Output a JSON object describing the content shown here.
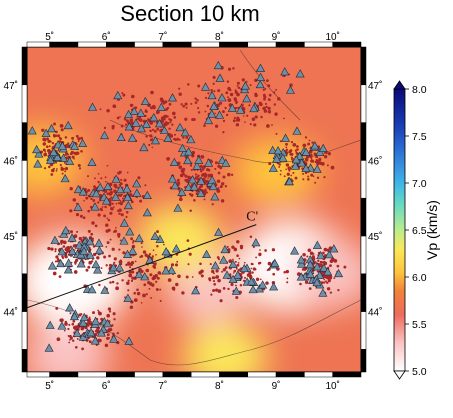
{
  "title": "Section 10 km",
  "map": {
    "lon_labels": [
      "5˚",
      "6˚",
      "7˚",
      "8˚",
      "9˚",
      "10˚"
    ],
    "lat_labels": [
      "47˚",
      "46˚",
      "45˚",
      "44˚"
    ],
    "lon_range": [
      4.6,
      10.5
    ],
    "lat_range": [
      43.2,
      47.5
    ],
    "profile_label": "C'",
    "profile_line": {
      "start": [
        4.6,
        44.05
      ],
      "end": [
        8.65,
        45.15
      ]
    },
    "seismicity_color": "#a8282a",
    "station_color": "#6f8fa8",
    "anomalies": [
      {
        "lon": 9.3,
        "lat": 44.6,
        "vp": 5.0
      },
      {
        "lon": 5.4,
        "lat": 44.4,
        "vp": 5.1
      },
      {
        "lon": 7.8,
        "lat": 44.3,
        "vp": 5.4
      },
      {
        "lon": 8.1,
        "lat": 43.4,
        "vp": 6.4
      },
      {
        "lon": 4.85,
        "lat": 46.0,
        "vp": 6.3
      },
      {
        "lon": 7.3,
        "lat": 44.95,
        "vp": 6.4
      },
      {
        "lon": 9.0,
        "lat": 45.85,
        "vp": 6.3
      },
      {
        "lon": 5.3,
        "lat": 43.4,
        "vp": 5.5
      },
      {
        "lon": 10.0,
        "lat": 44.5,
        "vp": 5.6
      }
    ]
  },
  "colorbar": {
    "title": "Vp (km/s)",
    "min": 5.0,
    "max": 8.0,
    "ticks": [
      "5.0",
      "5.5",
      "6.0",
      "6.5",
      "7.0",
      "7.5",
      "8.0"
    ],
    "stops": [
      {
        "v": 5.0,
        "c": "#ffffff"
      },
      {
        "v": 5.3,
        "c": "#fac3c3"
      },
      {
        "v": 5.6,
        "c": "#ed6b5d"
      },
      {
        "v": 5.85,
        "c": "#f0833a"
      },
      {
        "v": 6.05,
        "c": "#ffc43c"
      },
      {
        "v": 6.3,
        "c": "#fbe85a"
      },
      {
        "v": 6.5,
        "c": "#b9ee8c"
      },
      {
        "v": 6.8,
        "c": "#5fd6c8"
      },
      {
        "v": 7.0,
        "c": "#3fb4e8"
      },
      {
        "v": 7.3,
        "c": "#2e78d8"
      },
      {
        "v": 7.6,
        "c": "#1b3fb8"
      },
      {
        "v": 8.0,
        "c": "#0a0a78"
      }
    ]
  }
}
